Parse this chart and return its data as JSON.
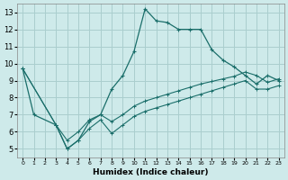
{
  "xlabel": "Humidex (Indice chaleur)",
  "background_color": "#ceeaea",
  "grid_color": "#aacece",
  "line_color": "#1a6e6a",
  "xlim": [
    -0.5,
    23.5
  ],
  "ylim": [
    4.5,
    13.5
  ],
  "xticks": [
    0,
    1,
    2,
    3,
    4,
    5,
    6,
    7,
    8,
    9,
    10,
    11,
    12,
    13,
    14,
    15,
    16,
    17,
    18,
    19,
    20,
    21,
    22,
    23
  ],
  "yticks": [
    5,
    6,
    7,
    8,
    9,
    10,
    11,
    12,
    13
  ],
  "line1_x": [
    0,
    1,
    3,
    4,
    5,
    6,
    7,
    8,
    9,
    10,
    11,
    12,
    13,
    14,
    15,
    16,
    17,
    18,
    19,
    20,
    21,
    22,
    23
  ],
  "line1_y": [
    9.7,
    7.0,
    6.4,
    5.0,
    5.5,
    6.6,
    7.0,
    8.5,
    9.3,
    10.7,
    13.2,
    12.5,
    12.4,
    12.0,
    12.0,
    12.0,
    10.8,
    10.2,
    9.8,
    9.3,
    8.8,
    9.3,
    9.0
  ],
  "line2_x": [
    0,
    3,
    4,
    5,
    6,
    7,
    8,
    9,
    10,
    11,
    12,
    13,
    14,
    15,
    16,
    17,
    18,
    19,
    20,
    21,
    22,
    23
  ],
  "line2_y": [
    9.7,
    6.4,
    5.5,
    6.0,
    6.7,
    7.0,
    6.6,
    7.0,
    7.5,
    7.8,
    8.0,
    8.2,
    8.4,
    8.6,
    8.8,
    8.95,
    9.1,
    9.25,
    9.5,
    9.3,
    8.9,
    9.1
  ],
  "line3_x": [
    0,
    3,
    4,
    5,
    6,
    7,
    8,
    9,
    10,
    11,
    12,
    13,
    14,
    15,
    16,
    17,
    18,
    19,
    20,
    21,
    22,
    23
  ],
  "line3_y": [
    9.7,
    6.4,
    5.0,
    5.5,
    6.2,
    6.7,
    5.9,
    6.4,
    6.9,
    7.2,
    7.4,
    7.6,
    7.8,
    8.0,
    8.2,
    8.4,
    8.6,
    8.8,
    9.0,
    8.5,
    8.5,
    8.7
  ]
}
